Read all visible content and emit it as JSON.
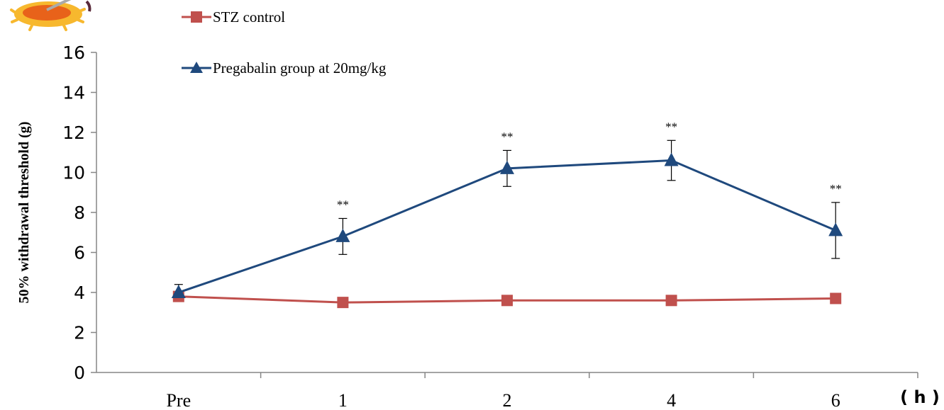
{
  "chart_data": {
    "type": "line",
    "categories": [
      "Pre",
      "1",
      "2",
      "4",
      "6"
    ],
    "x_unit_label": "( h )",
    "ylabel": "50% withdrawal threshold (g)",
    "ylim": [
      0,
      16
    ],
    "yticks": [
      0,
      2,
      4,
      6,
      8,
      10,
      12,
      14,
      16
    ],
    "grid": false,
    "legend_position": "top-left",
    "series": [
      {
        "name": "STZ control",
        "color": "#C0504D",
        "marker": "square",
        "values": [
          3.8,
          3.5,
          3.6,
          3.6,
          3.7
        ]
      },
      {
        "name": "Pregabalin group at 20mg/kg",
        "color": "#1F497D",
        "marker": "triangle",
        "values": [
          4.0,
          6.8,
          10.2,
          10.6,
          7.1
        ],
        "error": [
          0.4,
          0.9,
          0.9,
          1.0,
          1.4
        ]
      }
    ],
    "annotations": [
      "",
      "**",
      "**",
      "**",
      "**"
    ],
    "decoration": {
      "icon": "sun-cartoon-icon"
    }
  }
}
